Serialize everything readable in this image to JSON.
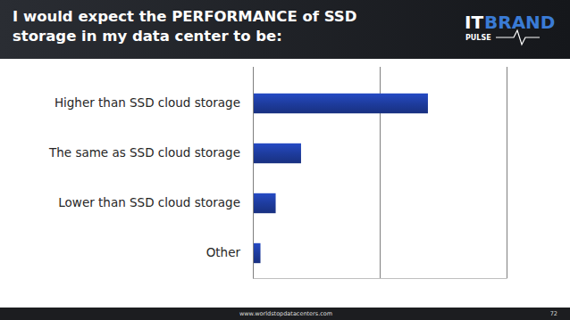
{
  "chart_data": {
    "type": "bar",
    "orientation": "horizontal",
    "title": "I would expect the PERFORMANCE of SSD\nstorage in my data center to be:",
    "categories": [
      "Higher than SSD cloud storage",
      "The same as SSD cloud storage",
      "Lower than SSD cloud storage",
      "Other"
    ],
    "values": [
      69,
      19,
      9,
      3
    ],
    "color": "#1e3c9e",
    "xlim": [
      0,
      100
    ],
    "xticks": [
      0,
      50,
      100
    ],
    "grid": true,
    "tick_labels": "y"
  },
  "logo": {
    "first": "IT",
    "second": "BRAND",
    "third": "PULSE"
  },
  "footer": {
    "url": "www.worldstopdatacenters.com",
    "page": "72"
  }
}
